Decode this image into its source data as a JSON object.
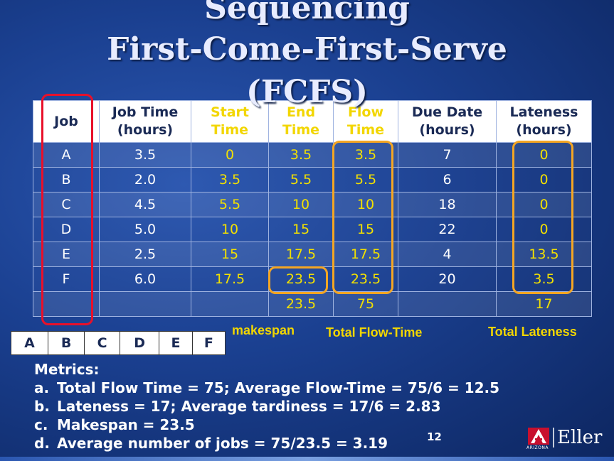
{
  "title": {
    "line1": "Sequencing",
    "line2": "First-Come-First-Serve",
    "line3": "(FCFS)"
  },
  "table": {
    "headers": [
      [
        "Job",
        ""
      ],
      [
        "Job Time",
        "(hours)"
      ],
      [
        "Start",
        "Time"
      ],
      [
        "End",
        "Time"
      ],
      [
        "Flow",
        "Time"
      ],
      [
        "Due Date",
        "(hours)"
      ],
      [
        "Lateness",
        "(hours)"
      ]
    ],
    "rows": [
      [
        "A",
        "3.5",
        "0",
        "3.5",
        "3.5",
        "7",
        "0"
      ],
      [
        "B",
        "2.0",
        "3.5",
        "5.5",
        "5.5",
        "6",
        "0"
      ],
      [
        "C",
        "4.5",
        "5.5",
        "10",
        "10",
        "18",
        "0"
      ],
      [
        "D",
        "5.0",
        "10",
        "15",
        "15",
        "22",
        "0"
      ],
      [
        "E",
        "2.5",
        "15",
        "17.5",
        "17.5",
        "4",
        "13.5"
      ],
      [
        "F",
        "6.0",
        "17.5",
        "23.5",
        "23.5",
        "20",
        "3.5"
      ],
      [
        "",
        "",
        "",
        "23.5",
        "75",
        "",
        "17"
      ]
    ]
  },
  "labels": {
    "makespan": "makespan",
    "total_flow": "Total Flow-Time",
    "total_lateness": "Total Lateness"
  },
  "sequence": [
    "A",
    "B",
    "C",
    "D",
    "E",
    "F"
  ],
  "metrics": {
    "heading": "Metrics:",
    "items": [
      {
        "marker": "a.",
        "text": "Total Flow Time = 75; Average Flow-Time = 75/6 = 12.5"
      },
      {
        "marker": "b.",
        "text": "Lateness = 17; Average tardiness = 17/6 = 2.83"
      },
      {
        "marker": "c.",
        "text": "Makespan = 23.5"
      },
      {
        "marker": "d.",
        "text": "Average number of jobs = 75/23.5 = 3.19"
      }
    ]
  },
  "page_number": "12",
  "logo": {
    "word": "Eller",
    "small": "ARIZONA"
  },
  "colors": {
    "highlight_red": "#e8102a",
    "highlight_orange": "#f5a623",
    "accent_yellow": "#f2d600"
  }
}
